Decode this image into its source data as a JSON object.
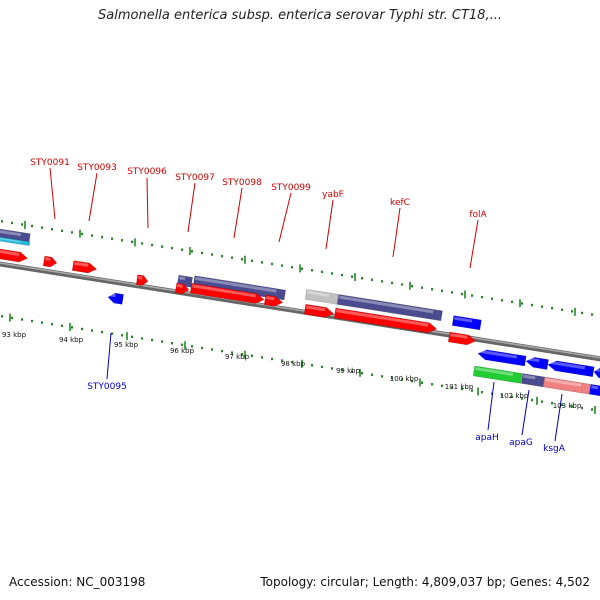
{
  "title": "Salmonella enterica subsp. enterica serovar Typhi str. CT18,...",
  "footer": {
    "accession": "Accession: NC_003198",
    "summary": "Topology: circular; Length: 4,809,037 bp; Genes: 4,502"
  },
  "colors": {
    "forward_label": "#cc0000",
    "reverse_label": "#0000bb",
    "red_gene": "#ff0000",
    "blue_gene": "#0000ff",
    "navy_gene": "#4b4b8f",
    "grey_gene": "#c0c0c0",
    "green_gene": "#22cc33",
    "pink_gene": "#f08080",
    "cyan_gene": "#22bbdd",
    "tick": "#228822",
    "backbone": "#888888"
  },
  "forward_labels": [
    {
      "text": "STY0091"
    },
    {
      "text": "STY0093"
    },
    {
      "text": "STY0096"
    },
    {
      "text": "STY0097"
    },
    {
      "text": "STY0098"
    },
    {
      "text": "STY0099"
    },
    {
      "text": "yabF"
    },
    {
      "text": "kefC"
    },
    {
      "text": "folA"
    }
  ],
  "reverse_labels": [
    {
      "text": "STY0095"
    },
    {
      "text": "apaH"
    },
    {
      "text": "apaG"
    },
    {
      "text": "ksgA"
    }
  ],
  "kbp_labels": [
    "93 kbp",
    "94 kbp",
    "95 kbp",
    "96 kbp",
    "97 kbp",
    "98 kbp",
    "99 kbp",
    "100 kbp",
    "101 kbp",
    "102 kbp",
    "103 kbp"
  ]
}
